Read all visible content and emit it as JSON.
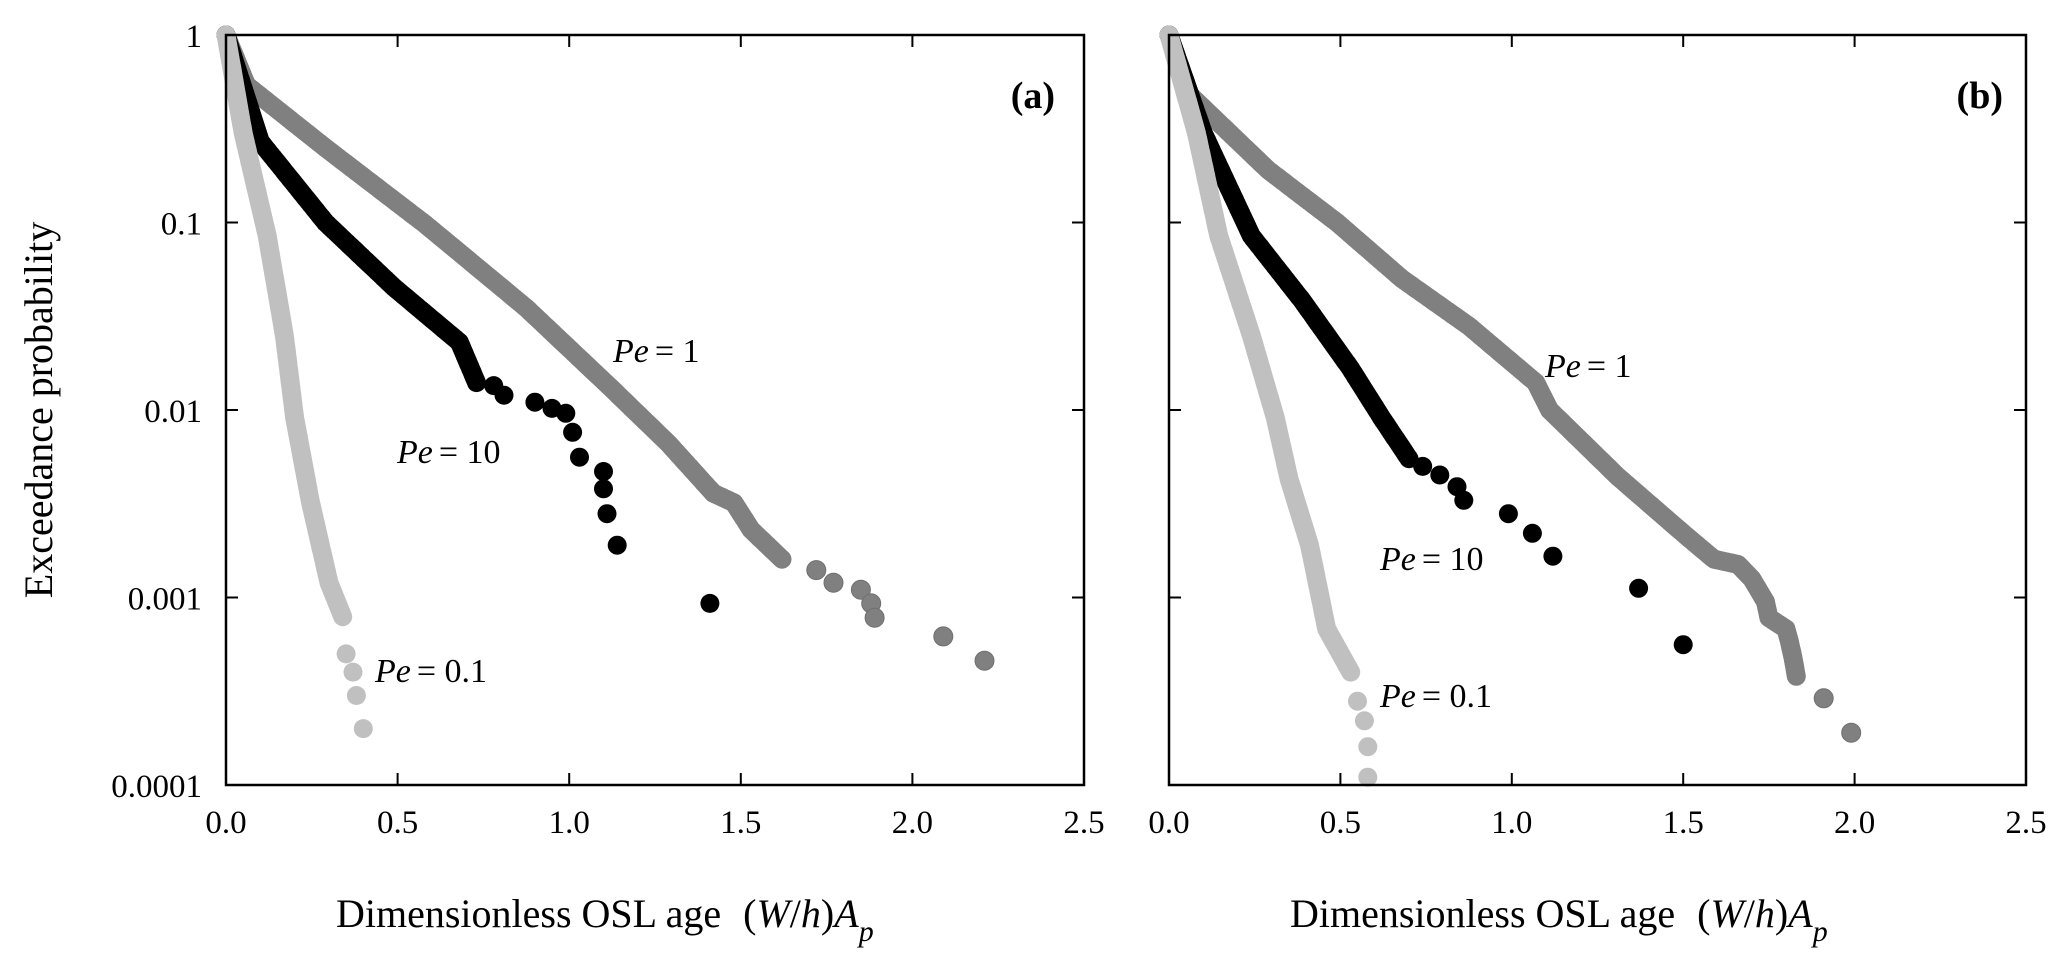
{
  "figure": {
    "ylabel": "Exceedance probability",
    "xlabel_text": "Dimensionless OSL age",
    "xlabel_math": {
      "open": "(",
      "W": "W",
      "slash": "/",
      "h": "h",
      "close": ")",
      "A": "A",
      "sub": "p"
    }
  },
  "chart_data": [
    {
      "type": "scatter",
      "panel": "(a)",
      "title": "(a)",
      "xlabel": "Dimensionless OSL age (W/h)A_p",
      "ylabel": "Exceedance probability",
      "xlim": [
        0,
        2.5
      ],
      "ylim": [
        0.0001,
        1
      ],
      "yscale": "log",
      "xticks": [
        "0.0",
        "0.5",
        "1.0",
        "1.5",
        "2.0",
        "2.5"
      ],
      "xtick_values": [
        0,
        0.5,
        1.0,
        1.5,
        2.0,
        2.5
      ],
      "yticks": [
        "1",
        "0.1",
        "0.01",
        "0.001",
        "0.0001"
      ],
      "ytick_values": [
        1,
        0.1,
        0.01,
        0.001,
        0.0001
      ],
      "grid": false,
      "series": [
        {
          "name": "Pe = 1",
          "label_prefix": "Pe",
          "label_value": "= 1",
          "color": "#808080",
          "points": [
            [
              0,
              1
            ],
            [
              0.06,
              0.54
            ],
            [
              0.29,
              0.25
            ],
            [
              0.58,
              0.098
            ],
            [
              0.875,
              0.035
            ],
            [
              1.12,
              0.0132
            ],
            [
              1.29,
              0.0066
            ],
            [
              1.42,
              0.0036
            ],
            [
              1.48,
              0.0032
            ],
            [
              1.53,
              0.0023
            ],
            [
              1.62,
              0.0016
            ]
          ],
          "tail_points": [
            [
              1.72,
              0.0014
            ],
            [
              1.77,
              0.0012
            ],
            [
              1.85,
              0.0011
            ],
            [
              1.88,
              0.00093
            ],
            [
              1.89,
              0.00078
            ],
            [
              2.09,
              0.00062
            ],
            [
              2.21,
              0.00046
            ]
          ]
        },
        {
          "name": "Pe = 10",
          "label_prefix": "Pe",
          "label_value": "= 10",
          "color": "#000000",
          "points": [
            [
              0,
              1
            ],
            [
              0.1,
              0.27
            ],
            [
              0.29,
              0.1
            ],
            [
              0.49,
              0.045
            ],
            [
              0.68,
              0.023
            ],
            [
              0.73,
              0.014
            ]
          ],
          "tail_points": [
            [
              0.78,
              0.0135
            ],
            [
              0.81,
              0.012
            ],
            [
              0.9,
              0.011
            ],
            [
              0.95,
              0.0102
            ],
            [
              0.99,
              0.0096
            ],
            [
              1.01,
              0.0076
            ],
            [
              1.03,
              0.0056
            ],
            [
              1.1,
              0.0047
            ],
            [
              1.1,
              0.0038
            ],
            [
              1.11,
              0.0028
            ],
            [
              1.14,
              0.0019
            ],
            [
              1.41,
              0.00093
            ]
          ]
        },
        {
          "name": "Pe = 0.1",
          "label_prefix": "Pe",
          "label_value": "= 0.1",
          "color": "#c0c0c0",
          "points": [
            [
              0,
              1
            ],
            [
              0.05,
              0.3
            ],
            [
              0.12,
              0.085
            ],
            [
              0.17,
              0.025
            ],
            [
              0.2,
              0.0091
            ],
            [
              0.245,
              0.0033
            ],
            [
              0.3,
              0.0012
            ],
            [
              0.34,
              0.00079
            ]
          ],
          "tail_points": [
            [
              0.35,
              0.0005
            ],
            [
              0.37,
              0.0004
            ],
            [
              0.38,
              0.0003
            ],
            [
              0.4,
              0.0002
            ]
          ]
        }
      ]
    },
    {
      "type": "scatter",
      "panel": "(b)",
      "title": "(b)",
      "xlabel": "Dimensionless OSL age (W/h)A_p",
      "ylabel": "Exceedance probability",
      "xlim": [
        0,
        2.5
      ],
      "ylim": [
        0.0001,
        1
      ],
      "yscale": "log",
      "xticks": [
        "0.0",
        "0.5",
        "1.0",
        "1.5",
        "2.0",
        "2.5"
      ],
      "xtick_values": [
        0,
        0.5,
        1.0,
        1.5,
        2.0,
        2.5
      ],
      "yticks": [],
      "ytick_values": [
        1,
        0.1,
        0.01,
        0.001,
        0.0001
      ],
      "grid": false,
      "series": [
        {
          "name": "Pe = 1",
          "label_prefix": "Pe",
          "label_value": "= 1",
          "color": "#808080",
          "points": [
            [
              0,
              1
            ],
            [
              0.06,
              0.48
            ],
            [
              0.29,
              0.19
            ],
            [
              0.49,
              0.1
            ],
            [
              0.68,
              0.05
            ],
            [
              0.875,
              0.028
            ],
            [
              1.07,
              0.014
            ],
            [
              1.11,
              0.01
            ],
            [
              1.31,
              0.0044
            ],
            [
              1.5,
              0.0022
            ],
            [
              1.59,
              0.0016
            ],
            [
              1.66,
              0.0015
            ],
            [
              1.7,
              0.00126
            ],
            [
              1.74,
              0.00095
            ],
            [
              1.75,
              0.00078
            ],
            [
              1.8,
              0.00068
            ],
            [
              1.81,
              0.00058
            ],
            [
              1.82,
              0.00048
            ],
            [
              1.83,
              0.00038
            ]
          ],
          "tail_points": [
            [
              1.91,
              0.00029
            ],
            [
              1.99,
              0.00019
            ]
          ]
        },
        {
          "name": "Pe = 10",
          "label_prefix": "Pe",
          "label_value": "= 10",
          "color": "#000000",
          "points": [
            [
              0,
              1
            ],
            [
              0.1,
              0.3
            ],
            [
              0.24,
              0.085
            ],
            [
              0.39,
              0.038
            ],
            [
              0.53,
              0.0166
            ],
            [
              0.62,
              0.0091
            ],
            [
              0.7,
              0.0055
            ]
          ],
          "tail_points": [
            [
              0.74,
              0.005
            ],
            [
              0.79,
              0.0045
            ],
            [
              0.84,
              0.0039
            ],
            [
              0.86,
              0.0033
            ],
            [
              0.99,
              0.0028
            ],
            [
              1.06,
              0.0022
            ],
            [
              1.12,
              0.00166
            ],
            [
              1.37,
              0.00112
            ],
            [
              1.5,
              0.00056
            ]
          ]
        },
        {
          "name": "Pe = 0.1",
          "label_prefix": "Pe",
          "label_value": "= 0.1",
          "color": "#c0c0c0",
          "points": [
            [
              0,
              1
            ],
            [
              0.08,
              0.3
            ],
            [
              0.145,
              0.085
            ],
            [
              0.24,
              0.025
            ],
            [
              0.31,
              0.0091
            ],
            [
              0.35,
              0.0043
            ],
            [
              0.41,
              0.0019
            ],
            [
              0.46,
              0.00068
            ],
            [
              0.53,
              0.0004
            ]
          ],
          "tail_points": [
            [
              0.55,
              0.00028
            ],
            [
              0.57,
              0.00022
            ],
            [
              0.58,
              0.00016
            ],
            [
              0.58,
              0.00011
            ]
          ]
        }
      ]
    }
  ]
}
